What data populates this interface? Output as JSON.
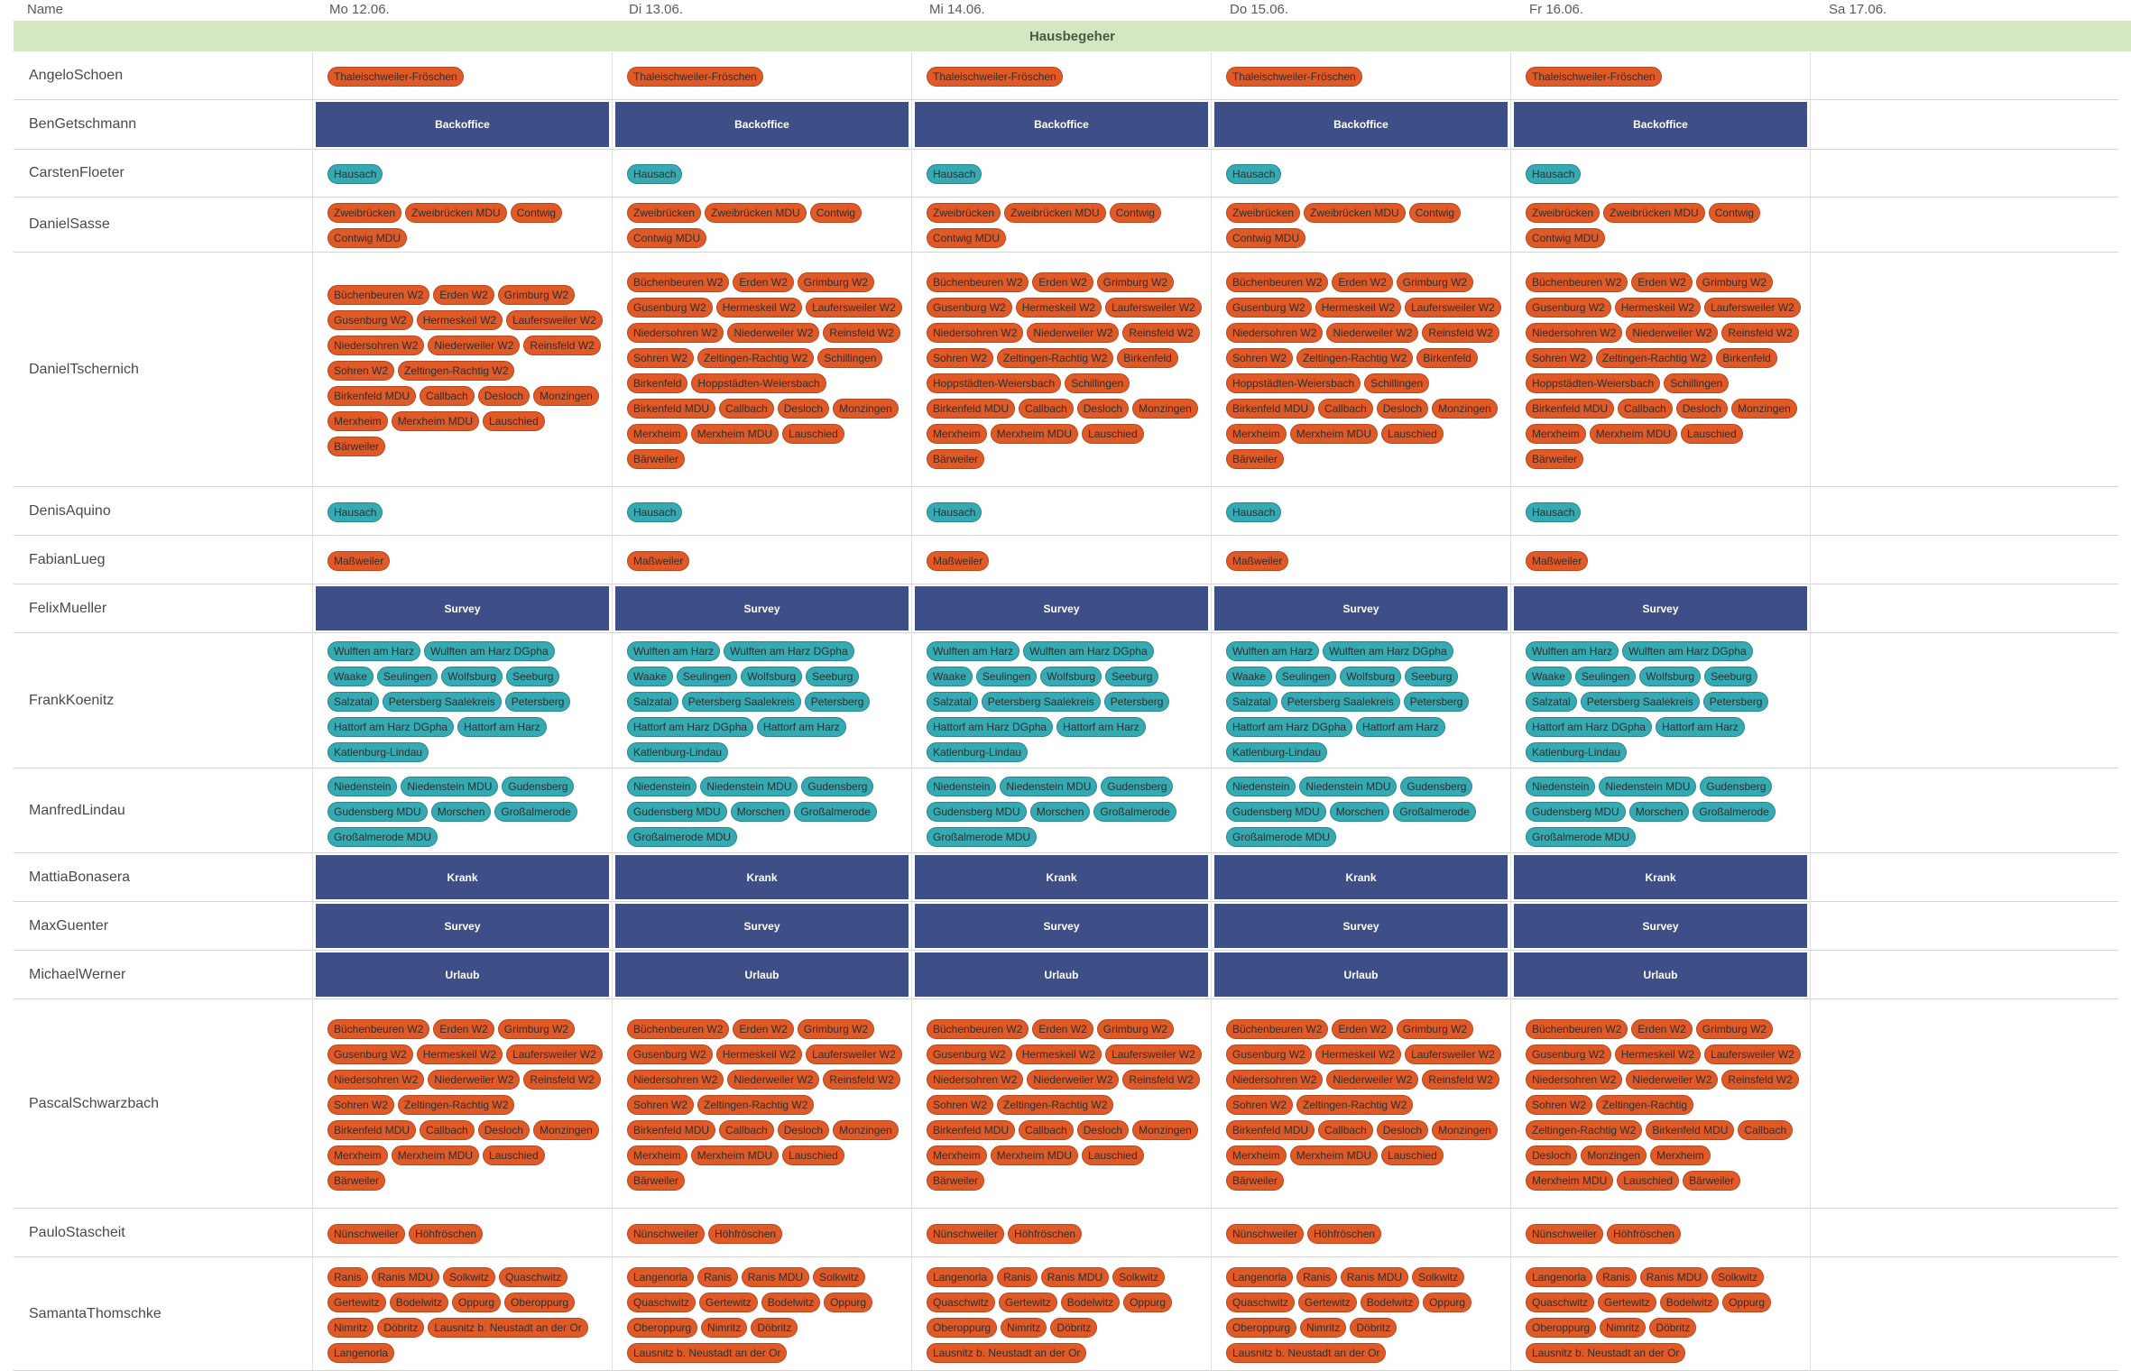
{
  "header": {
    "name_label": "Name",
    "days": [
      "Mo 12.06.",
      "Di 13.06.",
      "Mi 14.06.",
      "Do 15.06.",
      "Fr 16.06.",
      "Sa 17.06."
    ]
  },
  "group": {
    "title": "Hausbegeher"
  },
  "colors": {
    "orange": "#e05a28",
    "teal": "#35aab3",
    "block": "#3d4f86",
    "banner": "#d5e7c0"
  },
  "rows": [
    {
      "name": "AngeloSchoen",
      "height": 53,
      "days": [
        {
          "chips": [
            "Thaleischweiler-Fröschen"
          ],
          "color": "orange"
        },
        {
          "chips": [
            "Thaleischweiler-Fröschen"
          ],
          "color": "orange"
        },
        {
          "chips": [
            "Thaleischweiler-Fröschen"
          ],
          "color": "orange"
        },
        {
          "chips": [
            "Thaleischweiler-Fröschen"
          ],
          "color": "orange"
        },
        {
          "chips": [
            "Thaleischweiler-Fröschen"
          ],
          "color": "orange"
        },
        {
          "chips": []
        }
      ]
    },
    {
      "name": "BenGetschmann",
      "height": 55,
      "days": [
        {
          "block": "Backoffice"
        },
        {
          "block": "Backoffice"
        },
        {
          "block": "Backoffice"
        },
        {
          "block": "Backoffice"
        },
        {
          "block": "Backoffice"
        },
        {
          "chips": []
        }
      ]
    },
    {
      "name": "CarstenFloeter",
      "height": 53,
      "days": [
        {
          "chips": [
            "Hausach"
          ],
          "color": "teal"
        },
        {
          "chips": [
            "Hausach"
          ],
          "color": "teal"
        },
        {
          "chips": [
            "Hausach"
          ],
          "color": "teal"
        },
        {
          "chips": [
            "Hausach"
          ],
          "color": "teal"
        },
        {
          "chips": [
            "Hausach"
          ],
          "color": "teal"
        },
        {
          "chips": []
        }
      ]
    },
    {
      "name": "DanielSasse",
      "height": 61,
      "days": [
        {
          "chips": [
            "Zweibrücken",
            "Zweibrücken MDU",
            "Contwig",
            "Contwig MDU"
          ],
          "color": "orange"
        },
        {
          "chips": [
            "Zweibrücken",
            "Zweibrücken MDU",
            "Contwig",
            "Contwig MDU"
          ],
          "color": "orange"
        },
        {
          "chips": [
            "Zweibrücken",
            "Zweibrücken MDU",
            "Contwig",
            "Contwig MDU"
          ],
          "color": "orange"
        },
        {
          "chips": [
            "Zweibrücken",
            "Zweibrücken MDU",
            "Contwig",
            "Contwig MDU"
          ],
          "color": "orange"
        },
        {
          "chips": [
            "Zweibrücken",
            "Zweibrücken MDU",
            "Contwig",
            "Contwig MDU"
          ],
          "color": "orange"
        },
        {
          "chips": []
        }
      ]
    },
    {
      "name": "DanielTschernich",
      "height": 260,
      "days": [
        {
          "chips": [
            "Büchenbeuren W2",
            "Erden W2",
            "Grimburg W2",
            "Gusenburg W2",
            "Hermeskeil W2",
            "Laufersweiler W2",
            "Niedersohren W2",
            "Niederweiler W2",
            "Reinsfeld W2",
            "Sohren W2",
            "Zeltingen-Rachtig W2",
            "Birkenfeld MDU",
            "Callbach",
            "Desloch",
            "Monzingen",
            "Merxheim",
            "Merxheim MDU",
            "Lauschied",
            "Bärweiler"
          ],
          "color": "orange"
        },
        {
          "chips": [
            "Büchenbeuren W2",
            "Erden W2",
            "Grimburg W2",
            "Gusenburg W2",
            "Hermeskeil W2",
            "Laufersweiler W2",
            "Niedersohren W2",
            "Niederweiler W2",
            "Reinsfeld W2",
            "Sohren W2",
            "Zeltingen-Rachtig W2",
            "Schillingen",
            "Birkenfeld",
            "Hoppstädten-Weiersbach",
            "Birkenfeld MDU",
            "Callbach",
            "Desloch",
            "Monzingen",
            "Merxheim",
            "Merxheim MDU",
            "Lauschied",
            "Bärweiler"
          ],
          "color": "orange"
        },
        {
          "chips": [
            "Büchenbeuren W2",
            "Erden W2",
            "Grimburg W2",
            "Gusenburg W2",
            "Hermeskeil W2",
            "Laufersweiler W2",
            "Niedersohren W2",
            "Niederweiler W2",
            "Reinsfeld W2",
            "Sohren W2",
            "Zeltingen-Rachtig W2",
            "Birkenfeld",
            "Hoppstädten-Weiersbach",
            "Schillingen",
            "Birkenfeld MDU",
            "Callbach",
            "Desloch",
            "Monzingen",
            "Merxheim",
            "Merxheim MDU",
            "Lauschied",
            "Bärweiler"
          ],
          "color": "orange"
        },
        {
          "chips": [
            "Büchenbeuren W2",
            "Erden W2",
            "Grimburg W2",
            "Gusenburg W2",
            "Hermeskeil W2",
            "Laufersweiler W2",
            "Niedersohren W2",
            "Niederweiler W2",
            "Reinsfeld W2",
            "Sohren W2",
            "Zeltingen-Rachtig W2",
            "Birkenfeld",
            "Hoppstädten-Weiersbach",
            "Schillingen",
            "Birkenfeld MDU",
            "Callbach",
            "Desloch",
            "Monzingen",
            "Merxheim",
            "Merxheim MDU",
            "Lauschied",
            "Bärweiler"
          ],
          "color": "orange"
        },
        {
          "chips": [
            "Büchenbeuren W2",
            "Erden W2",
            "Grimburg W2",
            "Gusenburg W2",
            "Hermeskeil W2",
            "Laufersweiler W2",
            "Niedersohren W2",
            "Niederweiler W2",
            "Reinsfeld W2",
            "Sohren W2",
            "Zeltingen-Rachtig W2",
            "Birkenfeld",
            "Hoppstädten-Weiersbach",
            "Schillingen",
            "Birkenfeld MDU",
            "Callbach",
            "Desloch",
            "Monzingen",
            "Merxheim",
            "Merxheim MDU",
            "Lauschied",
            "Bärweiler"
          ],
          "color": "orange"
        },
        {
          "chips": []
        }
      ]
    },
    {
      "name": "DenisAquino",
      "height": 54,
      "days": [
        {
          "chips": [
            "Hausach"
          ],
          "color": "teal"
        },
        {
          "chips": [
            "Hausach"
          ],
          "color": "teal"
        },
        {
          "chips": [
            "Hausach"
          ],
          "color": "teal"
        },
        {
          "chips": [
            "Hausach"
          ],
          "color": "teal"
        },
        {
          "chips": [
            "Hausach"
          ],
          "color": "teal"
        },
        {
          "chips": []
        }
      ]
    },
    {
      "name": "FabianLueg",
      "height": 54,
      "days": [
        {
          "chips": [
            "Maßweiler"
          ],
          "color": "orange"
        },
        {
          "chips": [
            "Maßweiler"
          ],
          "color": "orange"
        },
        {
          "chips": [
            "Maßweiler"
          ],
          "color": "orange"
        },
        {
          "chips": [
            "Maßweiler"
          ],
          "color": "orange"
        },
        {
          "chips": [
            "Maßweiler"
          ],
          "color": "orange"
        },
        {
          "chips": []
        }
      ]
    },
    {
      "name": "FelixMueller",
      "height": 54,
      "days": [
        {
          "block": "Survey"
        },
        {
          "block": "Survey"
        },
        {
          "block": "Survey"
        },
        {
          "block": "Survey"
        },
        {
          "block": "Survey"
        },
        {
          "chips": []
        }
      ]
    },
    {
      "name": "FrankKoenitz",
      "height": 150,
      "days": [
        {
          "chips": [
            "Wulften am Harz",
            "Wulften am Harz DGpha",
            "Waake",
            "Seulingen",
            "Wolfsburg",
            "Seeburg",
            "Salzatal",
            "Petersberg Saalekreis",
            "Petersberg",
            "Hattorf am Harz DGpha",
            "Hattorf am Harz",
            "Katlenburg-Lindau"
          ],
          "color": "teal"
        },
        {
          "chips": [
            "Wulften am Harz",
            "Wulften am Harz DGpha",
            "Waake",
            "Seulingen",
            "Wolfsburg",
            "Seeburg",
            "Salzatal",
            "Petersberg Saalekreis",
            "Petersberg",
            "Hattorf am Harz DGpha",
            "Hattorf am Harz",
            "Katlenburg-Lindau"
          ],
          "color": "teal"
        },
        {
          "chips": [
            "Wulften am Harz",
            "Wulften am Harz DGpha",
            "Waake",
            "Seulingen",
            "Wolfsburg",
            "Seeburg",
            "Salzatal",
            "Petersberg Saalekreis",
            "Petersberg",
            "Hattorf am Harz DGpha",
            "Hattorf am Harz",
            "Katlenburg-Lindau"
          ],
          "color": "teal"
        },
        {
          "chips": [
            "Wulften am Harz",
            "Wulften am Harz DGpha",
            "Waake",
            "Seulingen",
            "Wolfsburg",
            "Seeburg",
            "Salzatal",
            "Petersberg Saalekreis",
            "Petersberg",
            "Hattorf am Harz DGpha",
            "Hattorf am Harz",
            "Katlenburg-Lindau"
          ],
          "color": "teal"
        },
        {
          "chips": [
            "Wulften am Harz",
            "Wulften am Harz DGpha",
            "Waake",
            "Seulingen",
            "Wolfsburg",
            "Seeburg",
            "Salzatal",
            "Petersberg Saalekreis",
            "Petersberg",
            "Hattorf am Harz DGpha",
            "Hattorf am Harz",
            "Katlenburg-Lindau"
          ],
          "color": "teal"
        },
        {
          "chips": []
        }
      ]
    },
    {
      "name": "ManfredLindau",
      "height": 94,
      "days": [
        {
          "chips": [
            "Niedenstein",
            "Niedenstein MDU",
            "Gudensberg",
            "Gudensberg MDU",
            "Morschen",
            "Großalmerode",
            "Großalmerode MDU"
          ],
          "color": "teal"
        },
        {
          "chips": [
            "Niedenstein",
            "Niedenstein MDU",
            "Gudensberg",
            "Gudensberg MDU",
            "Morschen",
            "Großalmerode",
            "Großalmerode MDU"
          ],
          "color": "teal"
        },
        {
          "chips": [
            "Niedenstein",
            "Niedenstein MDU",
            "Gudensberg",
            "Gudensberg MDU",
            "Morschen",
            "Großalmerode",
            "Großalmerode MDU"
          ],
          "color": "teal"
        },
        {
          "chips": [
            "Niedenstein",
            "Niedenstein MDU",
            "Gudensberg",
            "Gudensberg MDU",
            "Morschen",
            "Großalmerode",
            "Großalmerode MDU"
          ],
          "color": "teal"
        },
        {
          "chips": [
            "Niedenstein",
            "Niedenstein MDU",
            "Gudensberg",
            "Gudensberg MDU",
            "Morschen",
            "Großalmerode",
            "Großalmerode MDU"
          ],
          "color": "teal"
        },
        {
          "chips": []
        }
      ]
    },
    {
      "name": "MattiaBonasera",
      "height": 54,
      "days": [
        {
          "block": "Krank"
        },
        {
          "block": "Krank"
        },
        {
          "block": "Krank"
        },
        {
          "block": "Krank"
        },
        {
          "block": "Krank"
        },
        {
          "chips": []
        }
      ]
    },
    {
      "name": "MaxGuenter",
      "height": 54,
      "days": [
        {
          "block": "Survey"
        },
        {
          "block": "Survey"
        },
        {
          "block": "Survey"
        },
        {
          "block": "Survey"
        },
        {
          "block": "Survey"
        },
        {
          "chips": []
        }
      ]
    },
    {
      "name": "MichaelWerner",
      "height": 54,
      "days": [
        {
          "block": "Urlaub"
        },
        {
          "block": "Urlaub"
        },
        {
          "block": "Urlaub"
        },
        {
          "block": "Urlaub"
        },
        {
          "block": "Urlaub"
        },
        {
          "chips": []
        }
      ]
    },
    {
      "name": "PascalSchwarzbach",
      "height": 232,
      "days": [
        {
          "chips": [
            "Büchenbeuren W2",
            "Erden W2",
            "Grimburg W2",
            "Gusenburg W2",
            "Hermeskeil W2",
            "Laufersweiler W2",
            "Niedersohren W2",
            "Niederweiler W2",
            "Reinsfeld W2",
            "Sohren W2",
            "Zeltingen-Rachtig W2",
            "Birkenfeld MDU",
            "Callbach",
            "Desloch",
            "Monzingen",
            "Merxheim",
            "Merxheim MDU",
            "Lauschied",
            "Bärweiler"
          ],
          "color": "orange"
        },
        {
          "chips": [
            "Büchenbeuren W2",
            "Erden W2",
            "Grimburg W2",
            "Gusenburg W2",
            "Hermeskeil W2",
            "Laufersweiler W2",
            "Niedersohren W2",
            "Niederweiler W2",
            "Reinsfeld W2",
            "Sohren W2",
            "Zeltingen-Rachtig W2",
            "Birkenfeld MDU",
            "Callbach",
            "Desloch",
            "Monzingen",
            "Merxheim",
            "Merxheim MDU",
            "Lauschied",
            "Bärweiler"
          ],
          "color": "orange"
        },
        {
          "chips": [
            "Büchenbeuren W2",
            "Erden W2",
            "Grimburg W2",
            "Gusenburg W2",
            "Hermeskeil W2",
            "Laufersweiler W2",
            "Niedersohren W2",
            "Niederweiler W2",
            "Reinsfeld W2",
            "Sohren W2",
            "Zeltingen-Rachtig W2",
            "Birkenfeld MDU",
            "Callbach",
            "Desloch",
            "Monzingen",
            "Merxheim",
            "Merxheim MDU",
            "Lauschied",
            "Bärweiler"
          ],
          "color": "orange"
        },
        {
          "chips": [
            "Büchenbeuren W2",
            "Erden W2",
            "Grimburg W2",
            "Gusenburg W2",
            "Hermeskeil W2",
            "Laufersweiler W2",
            "Niedersohren W2",
            "Niederweiler W2",
            "Reinsfeld W2",
            "Sohren W2",
            "Zeltingen-Rachtig W2",
            "Birkenfeld MDU",
            "Callbach",
            "Desloch",
            "Monzingen",
            "Merxheim",
            "Merxheim MDU",
            "Lauschied",
            "Bärweiler"
          ],
          "color": "orange"
        },
        {
          "chips": [
            "Büchenbeuren W2",
            "Erden W2",
            "Grimburg W2",
            "Gusenburg W2",
            "Hermeskeil W2",
            "Laufersweiler W2",
            "Niedersohren W2",
            "Niederweiler W2",
            "Reinsfeld W2",
            "Sohren W2",
            "Zeltingen-Rachtig",
            "Zeltingen-Rachtig W2",
            "Birkenfeld MDU",
            "Callbach",
            "Desloch",
            "Monzingen",
            "Merxheim",
            "Merxheim MDU",
            "Lauschied",
            "Bärweiler"
          ],
          "color": "orange"
        },
        {
          "chips": []
        }
      ]
    },
    {
      "name": "PauloStascheit",
      "height": 54,
      "days": [
        {
          "chips": [
            "Nünschweiler",
            "Höhfröschen"
          ],
          "color": "orange"
        },
        {
          "chips": [
            "Nünschweiler",
            "Höhfröschen"
          ],
          "color": "orange"
        },
        {
          "chips": [
            "Nünschweiler",
            "Höhfröschen"
          ],
          "color": "orange"
        },
        {
          "chips": [
            "Nünschweiler",
            "Höhfröschen"
          ],
          "color": "orange"
        },
        {
          "chips": [
            "Nünschweiler",
            "Höhfröschen"
          ],
          "color": "orange"
        },
        {
          "chips": []
        }
      ]
    },
    {
      "name": "SamantaThomschke",
      "height": 126,
      "days": [
        {
          "chips": [
            "Ranis",
            "Ranis MDU",
            "Solkwitz",
            "Quaschwitz",
            "Gertewitz",
            "Bodelwitz",
            "Oppurg",
            "Oberoppurg",
            "Nimritz",
            "Döbritz",
            "Lausnitz b. Neustadt an der Or",
            "Langenorla"
          ],
          "color": "orange"
        },
        {
          "chips": [
            "Langenorla",
            "Ranis",
            "Ranis MDU",
            "Solkwitz",
            "Quaschwitz",
            "Gertewitz",
            "Bodelwitz",
            "Oppurg",
            "Oberoppurg",
            "Nimritz",
            "Döbritz",
            "Lausnitz b. Neustadt an der Or"
          ],
          "color": "orange"
        },
        {
          "chips": [
            "Langenorla",
            "Ranis",
            "Ranis MDU",
            "Solkwitz",
            "Quaschwitz",
            "Gertewitz",
            "Bodelwitz",
            "Oppurg",
            "Oberoppurg",
            "Nimritz",
            "Döbritz",
            "Lausnitz b. Neustadt an der Or"
          ],
          "color": "orange"
        },
        {
          "chips": [
            "Langenorla",
            "Ranis",
            "Ranis MDU",
            "Solkwitz",
            "Quaschwitz",
            "Gertewitz",
            "Bodelwitz",
            "Oppurg",
            "Oberoppurg",
            "Nimritz",
            "Döbritz",
            "Lausnitz b. Neustadt an der Or"
          ],
          "color": "orange"
        },
        {
          "chips": [
            "Langenorla",
            "Ranis",
            "Ranis MDU",
            "Solkwitz",
            "Quaschwitz",
            "Gertewitz",
            "Bodelwitz",
            "Oppurg",
            "Oberoppurg",
            "Nimritz",
            "Döbritz",
            "Lausnitz b. Neustadt an der Or"
          ],
          "color": "orange"
        },
        {
          "chips": []
        }
      ]
    }
  ]
}
